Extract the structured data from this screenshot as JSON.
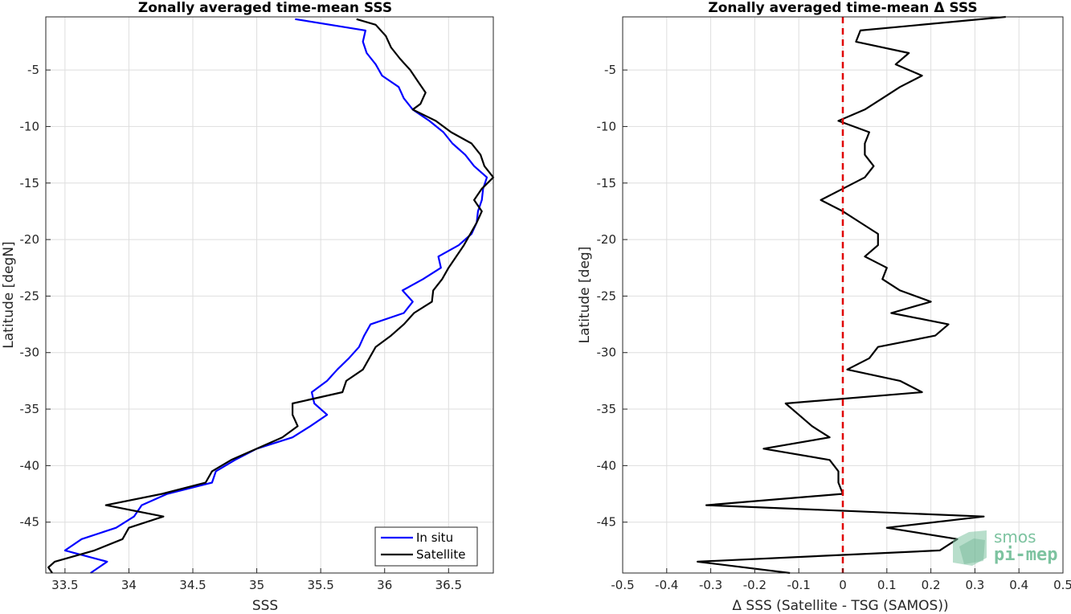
{
  "chart_data": [
    {
      "type": "line",
      "title": "Zonally averaged time-mean SSS",
      "xlabel": "SSS",
      "ylabel": "Latitude [degN]",
      "xlim": [
        33.35,
        36.85
      ],
      "ylim": [
        -49.5,
        -0.3
      ],
      "xticks": [
        33.5,
        34,
        34.5,
        35,
        35.5,
        36,
        36.5
      ],
      "yticks": [
        -5,
        -10,
        -15,
        -20,
        -25,
        -30,
        -35,
        -40,
        -45
      ],
      "grid": true,
      "legend_position": "bottom-right",
      "series": [
        {
          "name": "In situ",
          "color": "#0000ff",
          "lat": [
            -0.5,
            -1.5,
            -2.5,
            -3.5,
            -4.5,
            -5.5,
            -6.5,
            -7.5,
            -8.5,
            -9.5,
            -10.5,
            -11.5,
            -12.5,
            -13.5,
            -14.5,
            -15.5,
            -16.5,
            -17.5,
            -18.5,
            -19.5,
            -20.5,
            -21.5,
            -22.5,
            -23.5,
            -24.5,
            -25.5,
            -26.5,
            -27.5,
            -28.5,
            -29.5,
            -30.5,
            -31.5,
            -32.5,
            -33.5,
            -34.5,
            -35.5,
            -36.5,
            -37.5,
            -38.5,
            -39.5,
            -40.5,
            -41.5,
            -42.5,
            -43.5,
            -44.5,
            -45.5,
            -46.5,
            -47.5,
            -48.5,
            -49.5
          ],
          "sss": [
            35.3,
            35.85,
            35.83,
            35.86,
            35.93,
            35.98,
            36.11,
            36.15,
            36.22,
            36.35,
            36.46,
            36.53,
            36.63,
            36.7,
            36.8,
            36.77,
            36.76,
            36.73,
            36.72,
            36.68,
            36.58,
            36.42,
            36.44,
            36.3,
            36.14,
            36.22,
            36.15,
            35.89,
            35.84,
            35.8,
            35.72,
            35.63,
            35.55,
            35.43,
            35.45,
            35.55,
            35.42,
            35.28,
            35.0,
            34.83,
            34.68,
            34.65,
            34.3,
            34.1,
            34.04,
            33.9,
            33.63,
            33.5,
            33.83,
            33.7
          ]
        },
        {
          "name": "Satellite",
          "color": "#000000",
          "lat": [
            -0.5,
            -1.0,
            -2.0,
            -3.0,
            -4.0,
            -5.0,
            -6.0,
            -7.0,
            -8.0,
            -8.5,
            -9.5,
            -10.5,
            -11.5,
            -12.5,
            -13.5,
            -14.5,
            -15.5,
            -16.5,
            -17.5,
            -18.5,
            -19.5,
            -20.5,
            -21.5,
            -22.5,
            -23.5,
            -24.5,
            -25.5,
            -26.5,
            -27.5,
            -28.5,
            -29.5,
            -30.5,
            -31.5,
            -32.5,
            -33.5,
            -34.5,
            -35.5,
            -36.5,
            -37.5,
            -38.5,
            -39.5,
            -40.5,
            -41.5,
            -42.5,
            -43.5,
            -44.5,
            -45.5,
            -46.5,
            -47.5,
            -48.5,
            -49.0,
            -49.5
          ],
          "sss": [
            35.78,
            35.93,
            36.01,
            36.05,
            36.12,
            36.2,
            36.26,
            36.32,
            36.28,
            36.22,
            36.4,
            36.52,
            36.68,
            36.75,
            36.78,
            36.85,
            36.76,
            36.7,
            36.76,
            36.72,
            36.67,
            36.62,
            36.56,
            36.5,
            36.45,
            36.38,
            36.37,
            36.23,
            36.15,
            36.05,
            35.93,
            35.88,
            35.83,
            35.7,
            35.67,
            35.28,
            35.28,
            35.32,
            35.2,
            35.0,
            34.8,
            34.65,
            34.6,
            34.26,
            33.82,
            34.27,
            34.0,
            33.95,
            33.73,
            33.42,
            33.37,
            33.4
          ]
        }
      ]
    },
    {
      "type": "line",
      "title": "Zonally averaged time-mean Δ SSS",
      "xlabel": "Δ SSS (Satellite - TSG (SAMOS))",
      "ylabel": "Latitude [deg]",
      "xlim": [
        -0.5,
        0.5
      ],
      "ylim": [
        -49.5,
        -0.3
      ],
      "xticks": [
        -0.5,
        -0.4,
        -0.3,
        -0.2,
        -0.1,
        0,
        0.1,
        0.2,
        0.3,
        0.4,
        0.5
      ],
      "yticks": [
        -5,
        -10,
        -15,
        -20,
        -25,
        -30,
        -35,
        -40,
        -45
      ],
      "grid": true,
      "reference_line": {
        "x": 0,
        "color": "#e00000",
        "style": "dashed"
      },
      "series": [
        {
          "name": "",
          "color": "#000000",
          "lat": [
            -0.3,
            -1.5,
            -2.5,
            -3.5,
            -4.5,
            -5.5,
            -6.5,
            -7.5,
            -8.5,
            -9.5,
            -10.5,
            -11.5,
            -12.5,
            -13.5,
            -14.5,
            -15.5,
            -16.5,
            -17.5,
            -18.5,
            -19.5,
            -20.5,
            -21.5,
            -22.5,
            -23.5,
            -24.5,
            -25.5,
            -26.5,
            -27.5,
            -28.5,
            -29.5,
            -30.5,
            -31.5,
            -32.5,
            -33.5,
            -34.5,
            -35.5,
            -36.5,
            -37.5,
            -38.5,
            -39.5,
            -40.5,
            -41.5,
            -42.5,
            -43.5,
            -44.5,
            -45.5,
            -46.5,
            -47.5,
            -48.5,
            -49.5
          ],
          "dsss": [
            0.37,
            0.04,
            0.03,
            0.15,
            0.12,
            0.18,
            0.13,
            0.09,
            0.05,
            -0.01,
            0.06,
            0.05,
            0.05,
            0.07,
            0.05,
            0.0,
            -0.05,
            0.0,
            0.04,
            0.08,
            0.08,
            0.05,
            0.1,
            0.09,
            0.13,
            0.2,
            0.11,
            0.24,
            0.21,
            0.08,
            0.06,
            0.01,
            0.13,
            0.18,
            -0.13,
            -0.1,
            -0.07,
            -0.03,
            -0.18,
            -0.03,
            -0.01,
            -0.01,
            0.0,
            -0.31,
            0.32,
            0.1,
            0.26,
            0.22,
            -0.33,
            -0.12
          ]
        }
      ]
    }
  ],
  "logo": {
    "line1": "smos",
    "line2": "pi-mep",
    "color": "#7dc3a0"
  }
}
